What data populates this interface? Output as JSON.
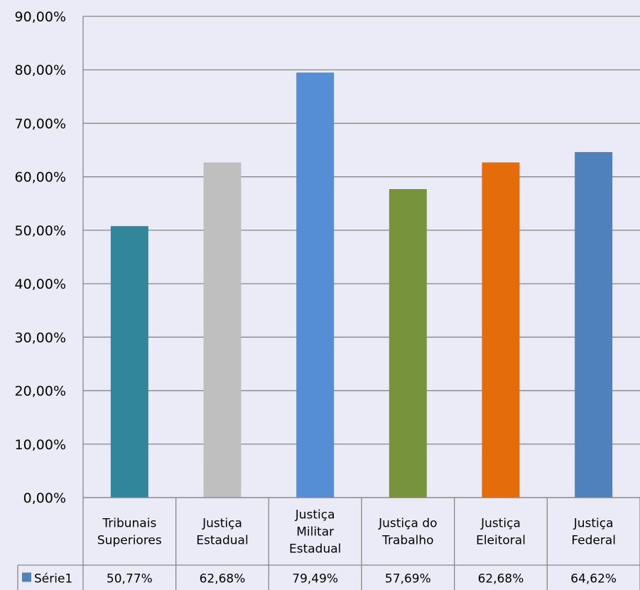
{
  "chart_data": {
    "type": "bar",
    "categories": [
      [
        "Tribunais",
        "Superiores"
      ],
      [
        "Justiça",
        "Estadual"
      ],
      [
        "Justiça",
        "Militar",
        "Estadual"
      ],
      [
        "Justiça do",
        "Trabalho"
      ],
      [
        "Justiça",
        "Eleitoral"
      ],
      [
        "Justiça",
        "Federal"
      ]
    ],
    "series": [
      {
        "name": "Série1",
        "values": [
          50.77,
          62.68,
          79.49,
          57.69,
          62.68,
          64.62
        ],
        "labels": [
          "50,77%",
          "62,68%",
          "79,49%",
          "57,69%",
          "62,68%",
          "64,62%"
        ]
      }
    ],
    "bar_colors": [
      "#31869b",
      "#bfbfbf",
      "#558ed5",
      "#77933c",
      "#e46c0a",
      "#4f81bd"
    ],
    "legend_color": "#4f81bd",
    "ylim": [
      0,
      90
    ],
    "yticks": [
      "0,00%",
      "10,00%",
      "20,00%",
      "30,00%",
      "40,00%",
      "50,00%",
      "60,00%",
      "70,00%",
      "80,00%",
      "90,00%"
    ],
    "grid": true,
    "data_table": true
  }
}
